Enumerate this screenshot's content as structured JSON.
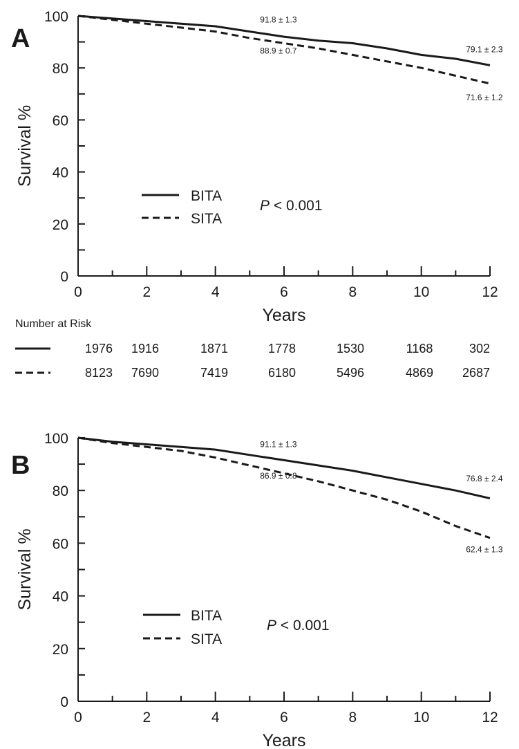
{
  "chart_data": [
    {
      "type": "line",
      "panel_label": "A",
      "xlabel": "Years",
      "ylabel": "Survival %",
      "xlim": [
        0,
        12
      ],
      "ylim": [
        0,
        100
      ],
      "x_ticks": [
        "0",
        "2",
        "4",
        "6",
        "8",
        "10",
        "12"
      ],
      "y_ticks": [
        "0",
        "20",
        "40",
        "60",
        "80",
        "100"
      ],
      "series": [
        {
          "name": "BITA",
          "style": "solid",
          "points": [
            [
              0,
              100
            ],
            [
              1,
              99
            ],
            [
              2,
              98
            ],
            [
              3,
              97
            ],
            [
              4,
              96
            ],
            [
              5,
              94
            ],
            [
              6,
              92
            ],
            [
              7,
              90.5
            ],
            [
              8,
              89.5
            ],
            [
              9,
              87.5
            ],
            [
              10,
              85
            ],
            [
              11,
              83.5
            ],
            [
              12,
              81
            ]
          ]
        },
        {
          "name": "SITA",
          "style": "dashed",
          "points": [
            [
              0,
              100
            ],
            [
              1,
              98.5
            ],
            [
              2,
              97
            ],
            [
              3,
              95.5
            ],
            [
              4,
              94
            ],
            [
              5,
              91.5
            ],
            [
              6,
              89.5
            ],
            [
              7,
              87.5
            ],
            [
              8,
              85
            ],
            [
              9,
              82.5
            ],
            [
              10,
              80
            ],
            [
              11,
              77
            ],
            [
              12,
              74
            ]
          ]
        }
      ],
      "annotations": [
        {
          "text": "91.8 ± 1.3",
          "x": 5.3,
          "y": 97.5
        },
        {
          "text": "88.9 ± 0.7",
          "x": 5.3,
          "y": 85.5
        },
        {
          "text": "79.1 ± 2.3",
          "x": 11.3,
          "y": 86.0
        },
        {
          "text": "71.6 ± 1.2",
          "x": 11.3,
          "y": 67.5
        }
      ],
      "legend": {
        "position": "center-left",
        "entries": [
          "BITA",
          "SITA"
        ]
      },
      "p_value": {
        "italic": "P",
        "rest": "< 0.001"
      },
      "risk_table": {
        "title": "Number at Risk",
        "rows": [
          {
            "style": "solid",
            "values": [
              "1976",
              "1916",
              "1871",
              "1778",
              "1530",
              "1168",
              "302"
            ]
          },
          {
            "style": "dashed",
            "values": [
              "8123",
              "7690",
              "7419",
              "6180",
              "5496",
              "4869",
              "2687"
            ]
          }
        ]
      }
    },
    {
      "type": "line",
      "panel_label": "B",
      "xlabel": "Years",
      "ylabel": "Survival %",
      "xlim": [
        0,
        12
      ],
      "ylim": [
        0,
        100
      ],
      "x_ticks": [
        "0",
        "2",
        "4",
        "6",
        "8",
        "10",
        "12"
      ],
      "y_ticks": [
        "0",
        "20",
        "40",
        "60",
        "80",
        "100"
      ],
      "series": [
        {
          "name": "BITA",
          "style": "solid",
          "points": [
            [
              0,
              100
            ],
            [
              1,
              98.5
            ],
            [
              2,
              97.5
            ],
            [
              3,
              96.5
            ],
            [
              4,
              95.5
            ],
            [
              5,
              93.5
            ],
            [
              6,
              91.5
            ],
            [
              7,
              89.5
            ],
            [
              8,
              87.5
            ],
            [
              9,
              85
            ],
            [
              10,
              82.5
            ],
            [
              11,
              80
            ],
            [
              12,
              77
            ]
          ]
        },
        {
          "name": "SITA",
          "style": "dashed",
          "points": [
            [
              0,
              100
            ],
            [
              1,
              98
            ],
            [
              2,
              96.5
            ],
            [
              3,
              95
            ],
            [
              4,
              92.5
            ],
            [
              5,
              89.5
            ],
            [
              6,
              86.5
            ],
            [
              7,
              83.5
            ],
            [
              8,
              80
            ],
            [
              9,
              76.5
            ],
            [
              10,
              72
            ],
            [
              11,
              66.5
            ],
            [
              12,
              62
            ]
          ]
        }
      ],
      "annotations": [
        {
          "text": "91.1 ± 1.3",
          "x": 5.3,
          "y": 96.5
        },
        {
          "text": "86.9 ± 0.8",
          "x": 5.3,
          "y": 84.5
        },
        {
          "text": "76.8 ± 2.4",
          "x": 11.3,
          "y": 83.5
        },
        {
          "text": "62.4 ± 1.3",
          "x": 11.3,
          "y": 56.5
        }
      ],
      "legend": {
        "position": "center-left",
        "entries": [
          "BITA",
          "SITA"
        ]
      },
      "p_value": {
        "italic": "P",
        "rest": "< 0.001"
      }
    }
  ]
}
